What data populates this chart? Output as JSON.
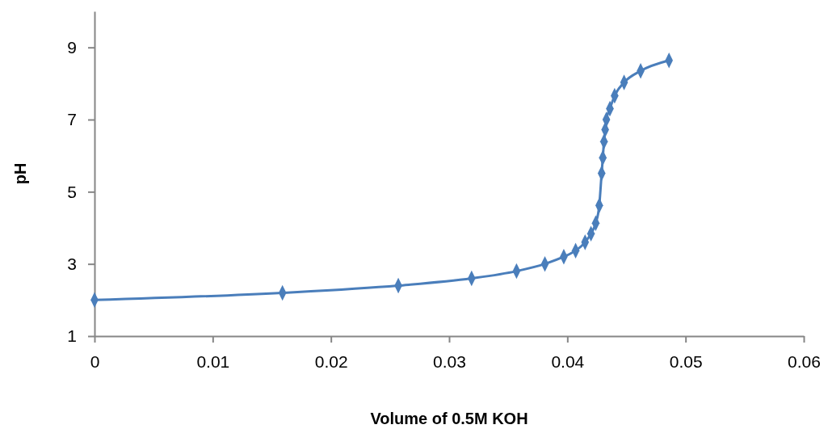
{
  "chart_data": {
    "type": "line",
    "xlabel": "Volume of 0.5M KOH",
    "ylabel": "pH",
    "xlim": [
      0,
      0.06
    ],
    "xticks": [
      0,
      0.01,
      0.02,
      0.03,
      0.04,
      0.05,
      0.06
    ],
    "ylim": [
      1,
      10
    ],
    "yticks": [
      1,
      3,
      5,
      7,
      9
    ],
    "grid": false,
    "marker": "diamond",
    "line_style": "solid",
    "series": [
      {
        "color": "#4a7ebb",
        "x": [
          0,
          0.0159,
          0.0257,
          0.0319,
          0.0357,
          0.0381,
          0.0397,
          0.0407,
          0.0415,
          0.042,
          0.0424,
          0.0427,
          0.0429,
          0.043,
          0.0431,
          0.0432,
          0.0433,
          0.0436,
          0.044,
          0.0448,
          0.0462,
          0.0486
        ],
        "values": [
          2.0,
          2.2,
          2.4,
          2.6,
          2.8,
          3.0,
          3.2,
          3.37,
          3.6,
          3.84,
          4.13,
          4.62,
          5.51,
          5.94,
          6.39,
          6.72,
          7.0,
          7.3,
          7.66,
          8.03,
          8.35,
          8.64
        ]
      }
    ]
  }
}
